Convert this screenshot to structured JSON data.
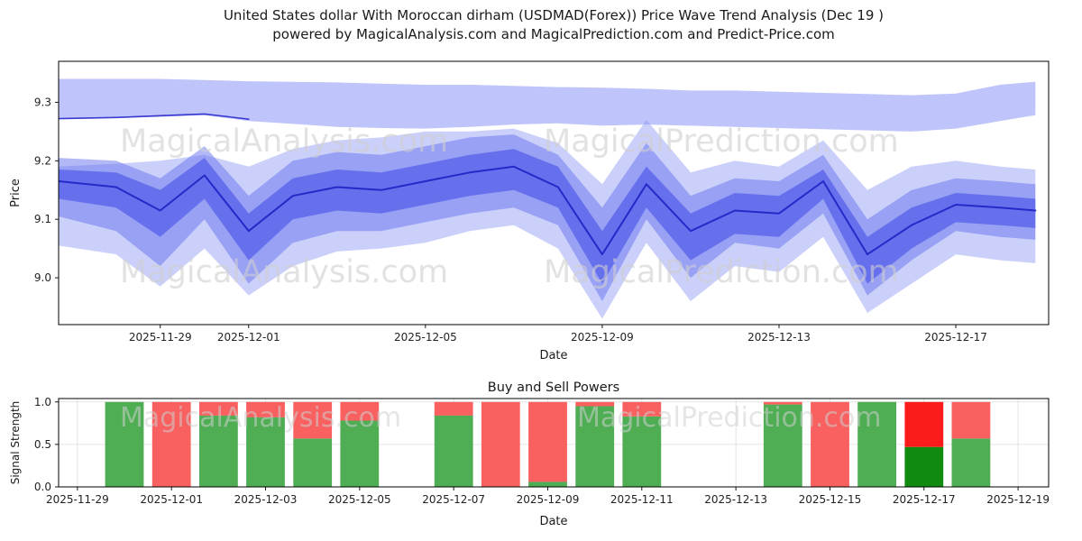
{
  "page": {
    "title_line1": "United States dollar With Moroccan dirham (USDMAD(Forex)) Price Wave Trend Analysis (Dec 19 )",
    "title_line2": "powered by MagicalAnalysis.com and MagicalPrediction.com and Predict-Price.com"
  },
  "watermarks": {
    "analysis": "MagicalAnalysis.com",
    "prediction": "MagicalPrediction.com"
  },
  "chart_data": [
    {
      "type": "area",
      "title": "",
      "xlabel": "Date",
      "ylabel": "Price",
      "ylim": [
        8.92,
        9.37
      ],
      "grid": false,
      "legend": "none",
      "yticks": [
        {
          "value": 9.0,
          "label": "9.0"
        },
        {
          "value": 9.1,
          "label": "9.1"
        },
        {
          "value": 9.2,
          "label": "9.2"
        },
        {
          "value": 9.3,
          "label": "9.3"
        }
      ],
      "xticks": [
        {
          "day": 0,
          "label": "2025-11-29"
        },
        {
          "day": 2,
          "label": "2025-12-01"
        },
        {
          "day": 6,
          "label": "2025-12-05"
        },
        {
          "day": 10,
          "label": "2025-12-09"
        },
        {
          "day": 14,
          "label": "2025-12-13"
        },
        {
          "day": 18,
          "label": "2025-12-17"
        }
      ],
      "x_days": [
        -2.3,
        -1,
        0,
        1,
        2,
        3,
        4,
        5,
        6,
        7,
        8,
        9,
        10,
        11,
        12,
        13,
        14,
        15,
        16,
        17,
        18,
        19,
        19.8
      ],
      "bands": [
        {
          "name": "forecast-upper-band",
          "color": "#8b96f5",
          "opacity": 0.55,
          "upper": [
            9.34,
            9.34,
            9.34,
            9.338,
            9.336,
            9.335,
            9.334,
            9.332,
            9.33,
            9.33,
            9.328,
            9.326,
            9.325,
            9.323,
            9.32,
            9.32,
            9.318,
            9.316,
            9.314,
            9.312,
            9.315,
            9.33,
            9.335
          ],
          "lower": [
            9.272,
            9.273,
            9.275,
            9.278,
            9.268,
            9.263,
            9.258,
            9.256,
            9.255,
            9.258,
            9.262,
            9.264,
            9.26,
            9.262,
            9.26,
            9.258,
            9.256,
            9.254,
            9.252,
            9.25,
            9.255,
            9.268,
            9.278
          ]
        },
        {
          "name": "outer-wave-band",
          "color": "#8b96f5",
          "opacity": 0.45,
          "upper": [
            9.19,
            9.195,
            9.2,
            9.21,
            9.19,
            9.22,
            9.235,
            9.24,
            9.25,
            9.25,
            9.255,
            9.23,
            9.16,
            9.27,
            9.18,
            9.2,
            9.19,
            9.235,
            9.15,
            9.19,
            9.2,
            9.19,
            9.185
          ],
          "lower": [
            9.055,
            9.04,
            8.985,
            9.05,
            8.97,
            9.02,
            9.045,
            9.05,
            9.06,
            9.08,
            9.09,
            9.05,
            8.93,
            9.06,
            8.96,
            9.02,
            9.01,
            9.07,
            8.94,
            8.99,
            9.04,
            9.03,
            9.025
          ]
        },
        {
          "name": "mid-wave-band",
          "color": "#6672ee",
          "opacity": 0.5,
          "upper": [
            9.205,
            9.2,
            9.17,
            9.225,
            9.14,
            9.2,
            9.215,
            9.21,
            9.225,
            9.24,
            9.245,
            9.21,
            9.12,
            9.23,
            9.14,
            9.17,
            9.165,
            9.21,
            9.1,
            9.15,
            9.17,
            9.165,
            9.16
          ],
          "lower": [
            9.105,
            9.08,
            9.02,
            9.1,
            8.99,
            9.06,
            9.08,
            9.08,
            9.095,
            9.11,
            9.12,
            9.09,
            8.96,
            9.1,
            9.0,
            9.06,
            9.05,
            9.11,
            8.97,
            9.03,
            9.08,
            9.07,
            9.065
          ]
        },
        {
          "name": "inner-wave-band",
          "color": "#4450e8",
          "opacity": 0.6,
          "upper": [
            9.185,
            9.18,
            9.15,
            9.205,
            9.11,
            9.17,
            9.185,
            9.18,
            9.195,
            9.21,
            9.22,
            9.19,
            9.08,
            9.19,
            9.11,
            9.145,
            9.14,
            9.185,
            9.07,
            9.12,
            9.145,
            9.14,
            9.135
          ],
          "lower": [
            9.135,
            9.12,
            9.07,
            9.135,
            9.03,
            9.1,
            9.115,
            9.11,
            9.125,
            9.14,
            9.15,
            9.12,
            8.99,
            9.12,
            9.03,
            9.075,
            9.07,
            9.135,
            8.99,
            9.05,
            9.095,
            9.09,
            9.085
          ]
        }
      ],
      "lines": [
        {
          "name": "price-trend-line",
          "color": "#2728c8",
          "width": 2,
          "y": [
            9.165,
            9.155,
            9.115,
            9.175,
            9.08,
            9.14,
            9.155,
            9.15,
            9.165,
            9.18,
            9.19,
            9.155,
            9.04,
            9.16,
            9.08,
            9.115,
            9.11,
            9.165,
            9.04,
            9.09,
            9.125,
            9.12,
            9.115
          ]
        },
        {
          "name": "upper-resistance-line",
          "color": "#3a3ad0",
          "width": 1.6,
          "x_days": [
            -2.3,
            -1,
            0,
            1,
            2
          ],
          "y": [
            9.272,
            9.274,
            9.277,
            9.28,
            9.271
          ]
        }
      ]
    },
    {
      "type": "bar",
      "title": "Buy and Sell Powers",
      "xlabel": "Date",
      "ylabel": "Signal Strength",
      "ylim": [
        0,
        1.04
      ],
      "grid": true,
      "yticks": [
        {
          "value": 0.0,
          "label": "0.0"
        },
        {
          "value": 0.5,
          "label": "0.5"
        },
        {
          "value": 1.0,
          "label": "1.0"
        }
      ],
      "xticks": [
        {
          "day": 0,
          "label": "2025-11-29"
        },
        {
          "day": 2,
          "label": "2025-12-01"
        },
        {
          "day": 4,
          "label": "2025-12-03"
        },
        {
          "day": 6,
          "label": "2025-12-05"
        },
        {
          "day": 8,
          "label": "2025-12-07"
        },
        {
          "day": 10,
          "label": "2025-12-09"
        },
        {
          "day": 12,
          "label": "2025-12-11"
        },
        {
          "day": 14,
          "label": "2025-12-13"
        },
        {
          "day": 16,
          "label": "2025-12-15"
        },
        {
          "day": 18,
          "label": "2025-12-17"
        },
        {
          "day": 20,
          "label": "2025-12-19"
        }
      ],
      "colors": {
        "buy": "#4fae54",
        "sell": "#f96060",
        "buy_highlight": "#108a10",
        "sell_highlight": "#fb1b1b"
      },
      "bar_width_days": 0.82,
      "bars": [
        {
          "date": "2025-11-30",
          "day": 1,
          "buy": 1.0,
          "sell": 0.0
        },
        {
          "date": "2025-12-01",
          "day": 2,
          "buy": 0.0,
          "sell": 1.0
        },
        {
          "date": "2025-12-02",
          "day": 3,
          "buy": 0.84,
          "sell": 0.16
        },
        {
          "date": "2025-12-03",
          "day": 4,
          "buy": 0.82,
          "sell": 0.18
        },
        {
          "date": "2025-12-04",
          "day": 5,
          "buy": 0.57,
          "sell": 0.43
        },
        {
          "date": "2025-12-05",
          "day": 6,
          "buy": 0.78,
          "sell": 0.22
        },
        {
          "date": "2025-12-07",
          "day": 8,
          "buy": 0.84,
          "sell": 0.16
        },
        {
          "date": "2025-12-08",
          "day": 9,
          "buy": 0.0,
          "sell": 1.0
        },
        {
          "date": "2025-12-09",
          "day": 10,
          "buy": 0.06,
          "sell": 0.94
        },
        {
          "date": "2025-12-10",
          "day": 11,
          "buy": 0.95,
          "sell": 0.05
        },
        {
          "date": "2025-12-11",
          "day": 12,
          "buy": 0.83,
          "sell": 0.17
        },
        {
          "date": "2025-12-14",
          "day": 15,
          "buy": 0.97,
          "sell": 0.03
        },
        {
          "date": "2025-12-15",
          "day": 16,
          "buy": 0.0,
          "sell": 1.0
        },
        {
          "date": "2025-12-16",
          "day": 17,
          "buy": 1.0,
          "sell": 0.0
        },
        {
          "date": "2025-12-17",
          "day": 18,
          "buy": 0.47,
          "sell": 0.53,
          "highlight": true
        },
        {
          "date": "2025-12-18",
          "day": 19,
          "buy": 0.57,
          "sell": 0.43
        }
      ]
    }
  ]
}
